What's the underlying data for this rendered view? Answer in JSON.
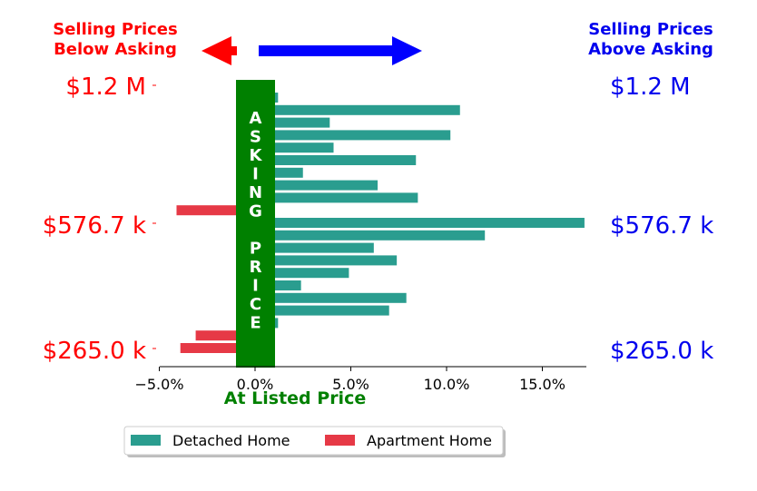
{
  "header": {
    "left_title_line1": "Selling Prices",
    "left_title_line2": "Below Asking",
    "right_title_line1": "Selling Prices",
    "right_title_line2": "Above Asking"
  },
  "price_labels": {
    "top": "$1.2 M",
    "middle": "$576.7 k",
    "bottom": "$265.0 k"
  },
  "asking_band_letters": [
    "A",
    "S",
    "K",
    "I",
    "N",
    "G",
    "",
    "P",
    "R",
    "I",
    "C",
    "E"
  ],
  "x_caption": "At Listed Price",
  "colors": {
    "detached": "#2a9d8f",
    "apartment": "#e63946",
    "asking_band": "#008000",
    "left_text": "#ff0000",
    "right_text": "#0000ee",
    "left_arrow": "#ff0000",
    "right_arrow": "#0000ff",
    "caption": "#008000"
  },
  "chart_data": {
    "type": "bar",
    "orientation": "horizontal",
    "xlim": [
      -5,
      17.5
    ],
    "x_tick_values": [
      -5,
      0,
      5,
      10,
      15
    ],
    "x_tick_labels": [
      "−5.0%",
      "0.0%",
      "5.0%",
      "10.0%",
      "15.0%"
    ],
    "y_tick_labels": [
      "$1.2 M",
      "$576.7 k",
      "$265.0 k"
    ],
    "legend_position": "bottom-center",
    "series": [
      {
        "name": "Detached Home",
        "values": [
          1.2,
          10.7,
          3.9,
          10.2,
          4.1,
          8.4,
          2.5,
          6.4,
          8.5,
          null,
          17.2,
          12.0,
          6.2,
          7.4,
          4.9,
          2.4,
          7.9,
          7.0,
          1.2,
          null,
          null
        ]
      },
      {
        "name": "Apartment Home",
        "values": [
          null,
          null,
          null,
          null,
          null,
          null,
          null,
          null,
          null,
          -4.1,
          null,
          null,
          null,
          null,
          null,
          null,
          null,
          null,
          null,
          -3.1,
          -3.9
        ]
      }
    ]
  }
}
